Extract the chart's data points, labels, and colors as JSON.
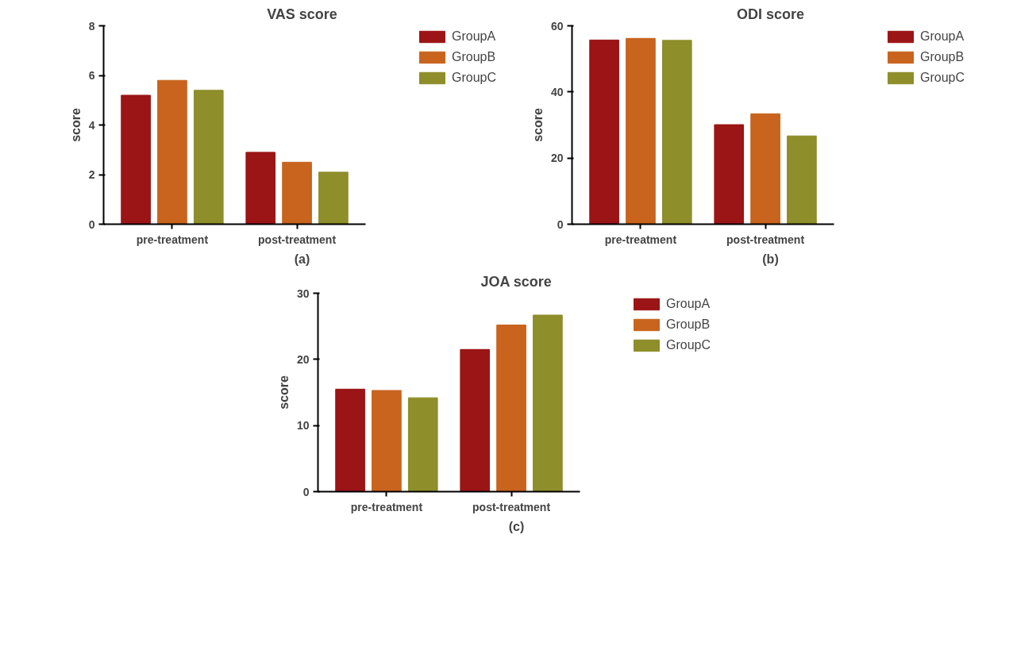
{
  "chart_data": [
    {
      "type": "bar",
      "title": "VAS score",
      "xlabel": "(a)",
      "ylabel": "score",
      "categories": [
        "pre-treatment",
        "post-treatment"
      ],
      "series": [
        {
          "name": "GroupA",
          "color": "#9b1416",
          "values": [
            5.2,
            2.9
          ]
        },
        {
          "name": "GroupB",
          "color": "#c8641e",
          "values": [
            5.8,
            2.5
          ]
        },
        {
          "name": "GroupC",
          "color": "#8e8e2a",
          "values": [
            5.4,
            2.1
          ]
        }
      ],
      "ylim": [
        0,
        8
      ],
      "yticks": [
        0,
        2,
        4,
        6,
        8
      ],
      "grid": false,
      "legend": "right"
    },
    {
      "type": "bar",
      "title": "ODI score",
      "xlabel": "(b)",
      "ylabel": "score",
      "categories": [
        "pre-treatment",
        "post-treatment"
      ],
      "series": [
        {
          "name": "GroupA",
          "color": "#9b1416",
          "values": [
            55.7,
            30.1
          ]
        },
        {
          "name": "GroupB",
          "color": "#c8641e",
          "values": [
            56.2,
            33.4
          ]
        },
        {
          "name": "GroupC",
          "color": "#8e8e2a",
          "values": [
            55.6,
            26.7
          ]
        }
      ],
      "ylim": [
        0,
        60
      ],
      "yticks": [
        0,
        20,
        40,
        60
      ],
      "grid": false,
      "legend": "right"
    },
    {
      "type": "bar",
      "title": "JOA score",
      "xlabel": "(c)",
      "ylabel": "score",
      "categories": [
        "pre-treatment",
        "post-treatment"
      ],
      "series": [
        {
          "name": "GroupA",
          "color": "#9b1416",
          "values": [
            15.5,
            21.5
          ]
        },
        {
          "name": "GroupB",
          "color": "#c8641e",
          "values": [
            15.3,
            25.2
          ]
        },
        {
          "name": "GroupC",
          "color": "#8e8e2a",
          "values": [
            14.2,
            26.7
          ]
        }
      ],
      "ylim": [
        0,
        30
      ],
      "yticks": [
        0,
        10,
        20,
        30
      ],
      "grid": false,
      "legend": "right"
    }
  ]
}
